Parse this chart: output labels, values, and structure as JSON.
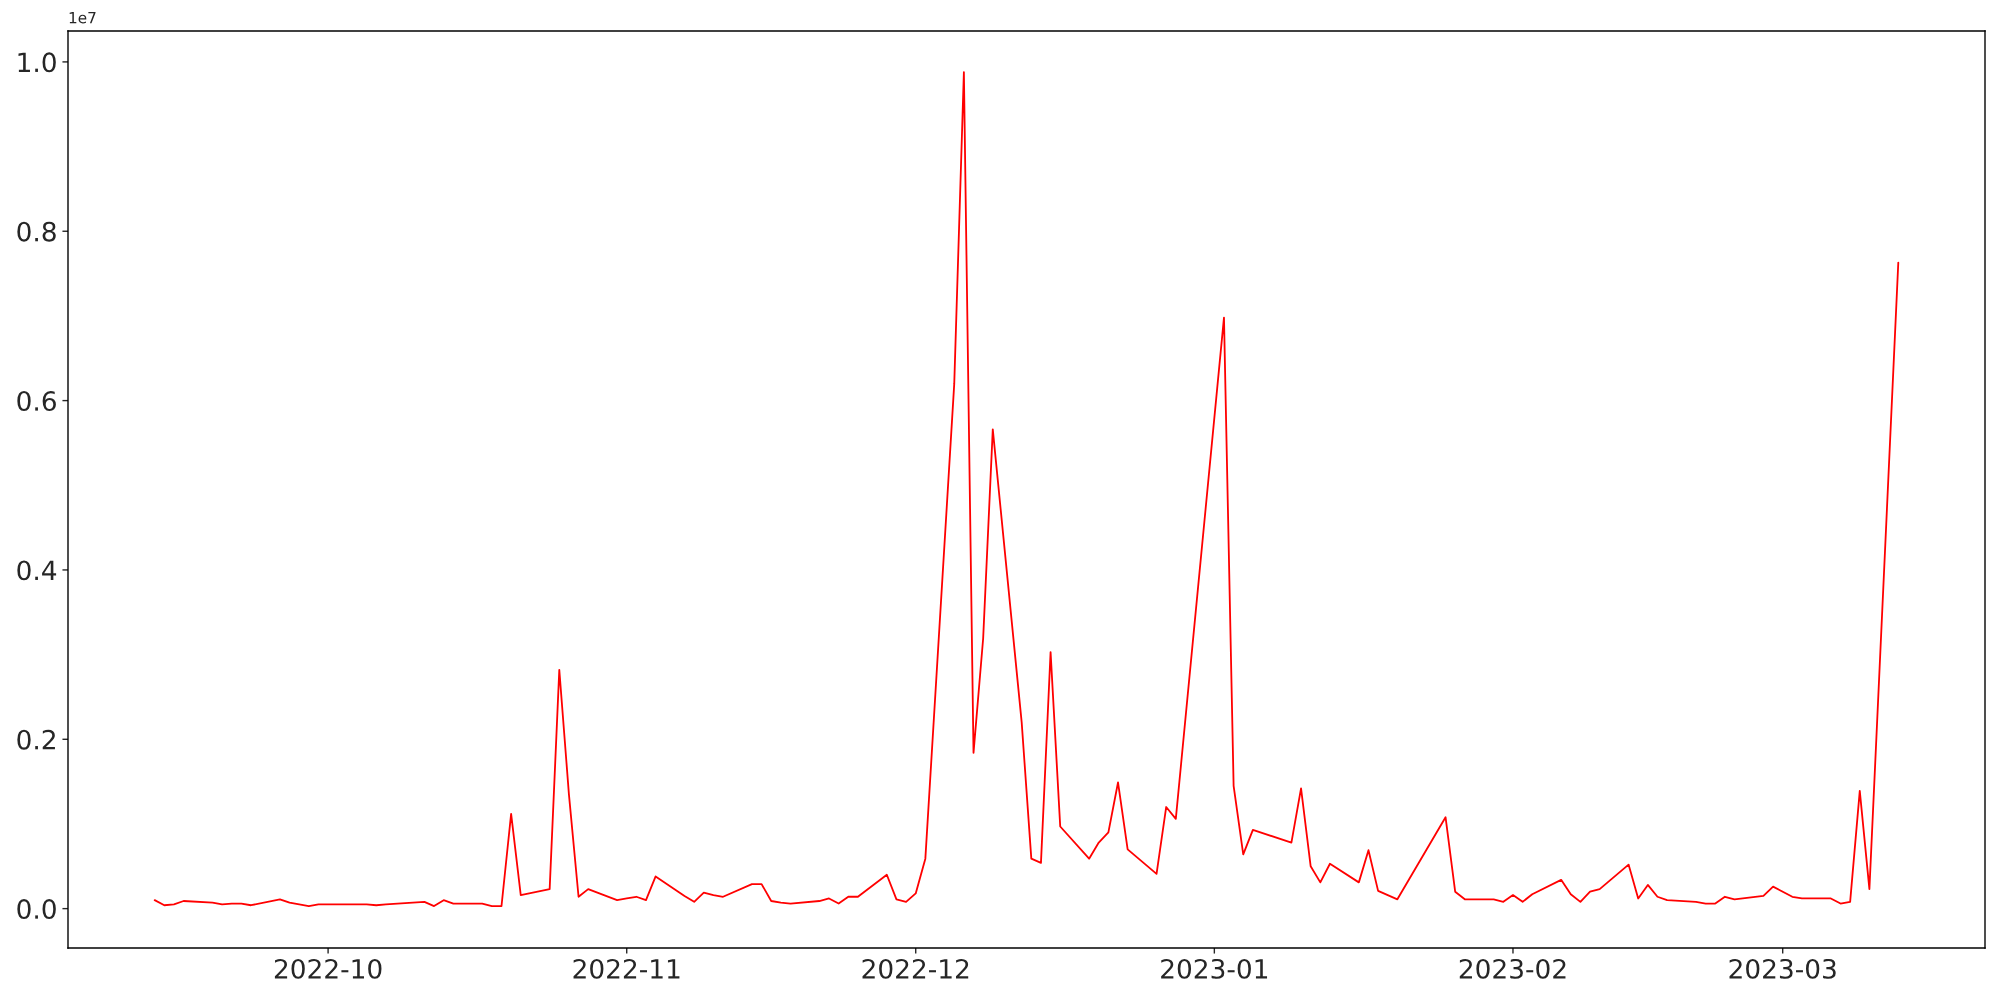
{
  "chart_data": {
    "type": "line",
    "x": [
      "2022-09-13",
      "2022-09-14",
      "2022-09-15",
      "2022-09-16",
      "2022-09-19",
      "2022-09-20",
      "2022-09-21",
      "2022-09-22",
      "2022-09-23",
      "2022-09-26",
      "2022-09-27",
      "2022-09-29",
      "2022-09-30",
      "2022-10-05",
      "2022-10-06",
      "2022-10-07",
      "2022-10-11",
      "2022-10-12",
      "2022-10-13",
      "2022-10-14",
      "2022-10-17",
      "2022-10-18",
      "2022-10-19",
      "2022-10-20",
      "2022-10-21",
      "2022-10-24",
      "2022-10-25",
      "2022-10-26",
      "2022-10-27",
      "2022-10-28",
      "2022-10-31",
      "2022-11-01",
      "2022-11-02",
      "2022-11-03",
      "2022-11-04",
      "2022-11-07",
      "2022-11-08",
      "2022-11-09",
      "2022-11-10",
      "2022-11-11",
      "2022-11-14",
      "2022-11-15",
      "2022-11-16",
      "2022-11-17",
      "2022-11-18",
      "2022-11-21",
      "2022-11-22",
      "2022-11-23",
      "2022-11-24",
      "2022-11-25",
      "2022-11-28",
      "2022-11-29",
      "2022-11-30",
      "2022-12-01",
      "2022-12-02",
      "2022-12-05",
      "2022-12-06",
      "2022-12-07",
      "2022-12-08",
      "2022-12-09",
      "2022-12-12",
      "2022-12-13",
      "2022-12-14",
      "2022-12-15",
      "2022-12-16",
      "2022-12-19",
      "2022-12-20",
      "2022-12-21",
      "2022-12-22",
      "2022-12-23",
      "2022-12-26",
      "2022-12-27",
      "2022-12-28",
      "2023-01-02",
      "2023-01-03",
      "2023-01-04",
      "2023-01-05",
      "2023-01-09",
      "2023-01-10",
      "2023-01-11",
      "2023-01-12",
      "2023-01-13",
      "2023-01-16",
      "2023-01-17",
      "2023-01-18",
      "2023-01-20",
      "2023-01-25",
      "2023-01-26",
      "2023-01-27",
      "2023-01-30",
      "2023-01-31",
      "2023-02-01",
      "2023-02-02",
      "2023-02-03",
      "2023-02-06",
      "2023-02-07",
      "2023-02-08",
      "2023-02-09",
      "2023-02-10",
      "2023-02-13",
      "2023-02-14",
      "2023-02-15",
      "2023-02-16",
      "2023-02-17",
      "2023-02-20",
      "2023-02-21",
      "2023-02-22",
      "2023-02-23",
      "2023-02-24",
      "2023-02-27",
      "2023-02-28",
      "2023-03-02",
      "2023-03-03",
      "2023-03-06",
      "2023-03-07",
      "2023-03-08",
      "2023-03-09",
      "2023-03-10",
      "2023-03-13"
    ],
    "series": [
      {
        "color": "#ff0000",
        "values": [
          0.01,
          0.004,
          0.005,
          0.009,
          0.007,
          0.005,
          0.006,
          0.006,
          0.004,
          0.011,
          0.007,
          0.003,
          0.005,
          0.005,
          0.004,
          0.005,
          0.008,
          0.003,
          0.01,
          0.006,
          0.006,
          0.003,
          0.003,
          0.112,
          0.016,
          0.023,
          0.282,
          0.135,
          0.014,
          0.023,
          0.01,
          0.012,
          0.014,
          0.01,
          0.038,
          0.015,
          0.008,
          0.019,
          0.016,
          0.014,
          0.029,
          0.029,
          0.009,
          0.007,
          0.006,
          0.009,
          0.012,
          0.006,
          0.014,
          0.014,
          0.04,
          0.011,
          0.008,
          0.018,
          0.059,
          0.62,
          0.988,
          0.184,
          0.319,
          0.566,
          0.22,
          0.059,
          0.054,
          0.303,
          0.097,
          0.059,
          0.078,
          0.09,
          0.149,
          0.07,
          0.041,
          0.12,
          0.106,
          0.698,
          0.145,
          0.064,
          0.093,
          0.078,
          0.142,
          0.05,
          0.031,
          0.053,
          0.031,
          0.069,
          0.021,
          0.011,
          0.108,
          0.02,
          0.011,
          0.011,
          0.008,
          0.016,
          0.008,
          0.017,
          0.034,
          0.017,
          0.008,
          0.02,
          0.023,
          0.052,
          0.012,
          0.028,
          0.014,
          0.01,
          0.008,
          0.006,
          0.006,
          0.014,
          0.011,
          0.015,
          0.026,
          0.014,
          0.012,
          0.012,
          0.006,
          0.008,
          0.139,
          0.023,
          0.763
        ]
      }
    ],
    "xlim": [
      "2022-09-04",
      "2023-03-22"
    ],
    "xticks": [
      {
        "value": "2022-10-01",
        "label": "2022-10"
      },
      {
        "value": "2022-11-01",
        "label": "2022-11"
      },
      {
        "value": "2022-12-01",
        "label": "2022-12"
      },
      {
        "value": "2023-01-01",
        "label": "2023-01"
      },
      {
        "value": "2023-02-01",
        "label": "2023-02"
      },
      {
        "value": "2023-03-01",
        "label": "2023-03"
      }
    ],
    "ylim": [
      -0.0465,
      1.0365
    ],
    "yticks": [
      {
        "value": 0,
        "label": "0.0"
      },
      0.2,
      0.4,
      0.6,
      0.8,
      {
        "value": 1,
        "label": "1.0"
      }
    ],
    "annotations": [
      "1e7"
    ],
    "grid": false,
    "marker": "none",
    "line_style": "solid"
  }
}
